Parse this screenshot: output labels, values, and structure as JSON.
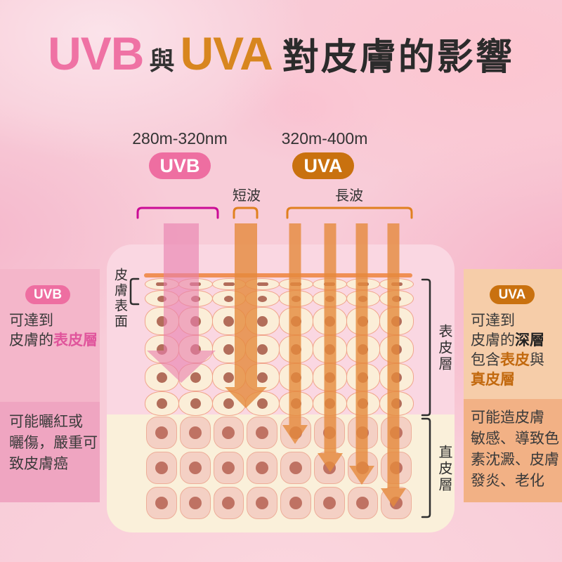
{
  "title": {
    "uvb": "UVB",
    "and": "與",
    "uva": "UVA",
    "suffix": "對皮膚的影響"
  },
  "spectrum": {
    "uvb_range": "280m-320nm",
    "uva_range": "320m-400m",
    "uvb_badge": "UVB",
    "uva_badge": "UVA",
    "short_wave_label": "短波",
    "long_wave_label": "長波"
  },
  "diagram": {
    "surface_label": "皮膚表面",
    "epidermis_label": "表皮層",
    "dermis_label": "直皮層"
  },
  "uvb_panel": {
    "badge": "UVB",
    "reach": [
      [
        {
          "t": "可達到"
        }
      ],
      [
        {
          "t": "皮膚的"
        },
        {
          "t": "表皮層",
          "s": "hl-pink"
        }
      ]
    ],
    "effects": [
      "可能曬紅或",
      "曬傷，嚴重可",
      "致皮膚癌"
    ]
  },
  "uva_panel": {
    "badge": "UVA",
    "reach": [
      [
        {
          "t": "可達到"
        }
      ],
      [
        {
          "t": "皮膚的"
        },
        {
          "t": "深層",
          "s": "hl-dark"
        }
      ],
      [
        {
          "t": "包含"
        },
        {
          "t": "表皮",
          "s": "hl-orange"
        },
        {
          "t": "與"
        }
      ],
      [
        {
          "t": "真皮層",
          "s": "hl-orange"
        }
      ]
    ],
    "effects": [
      "可能造皮膚",
      "敏感、導致色",
      "素沈澱、皮膚",
      "發炎、老化"
    ]
  },
  "colors": {
    "uvb_pink": "#ee6ea1",
    "uva_deep": "#c9710f",
    "title_uvb": "#ef72a4",
    "title_uva": "#d8861f",
    "uvb_bracket": "#cb0b96",
    "uva_bracket": "#e0801f",
    "uvb_arrow": "#e87fae",
    "uva_arrow": "#e5893c",
    "surface_line": "#f09055"
  }
}
